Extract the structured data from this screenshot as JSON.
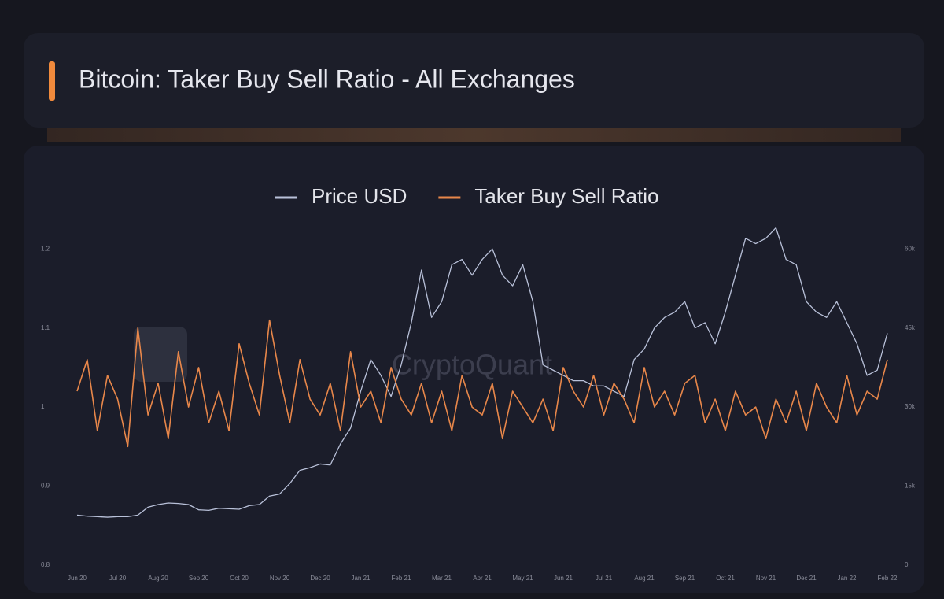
{
  "chart_data": {
    "type": "line",
    "title": "Bitcoin: Taker Buy Sell Ratio - All Exchanges",
    "watermark": "CryptoQuant",
    "categories": [
      "Jun 20",
      null,
      null,
      null,
      "Jul 20",
      null,
      null,
      null,
      "Aug 20",
      null,
      null,
      null,
      "Sep 20",
      null,
      null,
      null,
      "Oct 20",
      null,
      null,
      null,
      "Nov 20",
      null,
      null,
      null,
      "Dec 20",
      null,
      null,
      null,
      "Jan 21",
      null,
      null,
      null,
      "Feb 21",
      null,
      null,
      null,
      "Mar 21",
      null,
      null,
      null,
      "Apr 21",
      null,
      null,
      null,
      "May 21",
      null,
      null,
      null,
      "Jun 21",
      null,
      null,
      null,
      "Jul 21",
      null,
      null,
      null,
      "Aug 21",
      null,
      null,
      null,
      "Sep 21",
      null,
      null,
      null,
      "Oct 21",
      null,
      null,
      null,
      "Nov 21",
      null,
      null,
      null,
      "Dec 21",
      null,
      null,
      null,
      "Jan 22",
      null,
      null,
      null,
      "Feb 22"
    ],
    "series": [
      {
        "name": "Price USD",
        "color": "#b9c1d9",
        "axis": "y2",
        "values": [
          9500,
          9300,
          9200,
          9100,
          9200,
          9200,
          9500,
          11000,
          11500,
          11800,
          11700,
          11500,
          10500,
          10400,
          10800,
          10700,
          10600,
          11300,
          11500,
          13100,
          13500,
          15500,
          18000,
          18500,
          19200,
          19000,
          23000,
          26000,
          33000,
          39000,
          36000,
          32000,
          38000,
          46000,
          56000,
          47000,
          50000,
          57000,
          58000,
          55000,
          58000,
          60000,
          55000,
          53000,
          57000,
          50000,
          38000,
          37000,
          36000,
          35000,
          35000,
          34000,
          34000,
          33000,
          32000,
          39000,
          41000,
          45000,
          47000,
          48000,
          50000,
          45000,
          46000,
          42000,
          48000,
          55000,
          62000,
          61000,
          62000,
          64000,
          58000,
          57000,
          50000,
          48000,
          47000,
          50000,
          46000,
          42000,
          36000,
          37000,
          44000
        ]
      },
      {
        "name": "Taker Buy Sell Ratio",
        "color": "#e8874a",
        "values": [
          1.02,
          1.06,
          0.97,
          1.04,
          1.01,
          0.95,
          1.1,
          0.99,
          1.03,
          0.96,
          1.07,
          1.0,
          1.05,
          0.98,
          1.02,
          0.97,
          1.08,
          1.03,
          0.99,
          1.11,
          1.04,
          0.98,
          1.06,
          1.01,
          0.99,
          1.03,
          0.97,
          1.07,
          1.0,
          1.02,
          0.98,
          1.05,
          1.01,
          0.99,
          1.03,
          0.98,
          1.02,
          0.97,
          1.04,
          1.0,
          0.99,
          1.03,
          0.96,
          1.02,
          1.0,
          0.98,
          1.01,
          0.97,
          1.05,
          1.02,
          1.0,
          1.04,
          0.99,
          1.03,
          1.01,
          0.98,
          1.05,
          1.0,
          1.02,
          0.99,
          1.03,
          1.04,
          0.98,
          1.01,
          0.97,
          1.02,
          0.99,
          1.0,
          0.96,
          1.01,
          0.98,
          1.02,
          0.97,
          1.03,
          1.0,
          0.98,
          1.04,
          0.99,
          1.02,
          1.01,
          1.06
        ]
      }
    ],
    "ylim": [
      0.8,
      1.25
    ],
    "yticks": [
      0.8,
      0.9,
      1,
      1.1,
      1.2
    ],
    "y2lim": [
      0,
      67500
    ],
    "y2ticks": [
      0,
      {
        "value": 15000,
        "label": "15k"
      },
      {
        "value": 30000,
        "label": "30k"
      },
      {
        "value": 45000,
        "label": "45k"
      },
      {
        "value": 60000,
        "label": "60k"
      }
    ],
    "grid": false
  }
}
